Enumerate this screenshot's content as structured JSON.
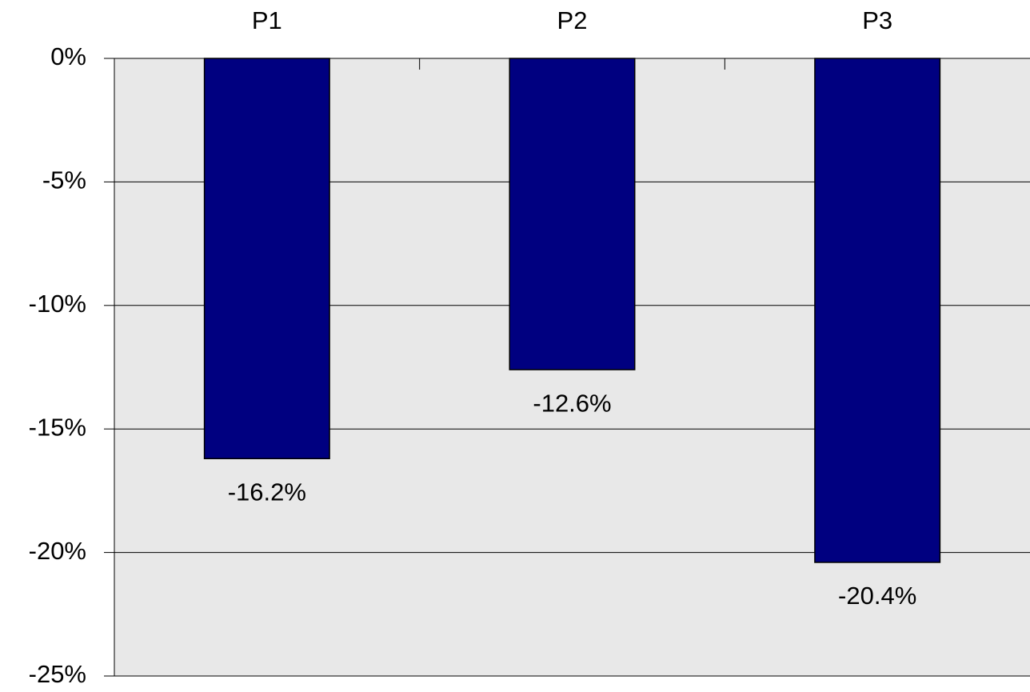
{
  "chart_data": {
    "type": "bar",
    "categories": [
      "P1",
      "P2",
      "P3"
    ],
    "values": [
      -16.2,
      -12.6,
      -20.4
    ],
    "value_labels": [
      "-16.2%",
      "-12.6%",
      "-20.4%"
    ],
    "color": "#000080",
    "ylim": [
      -25,
      0
    ],
    "yticks": [
      {
        "value": 0,
        "label": "0%"
      },
      {
        "value": -5,
        "label": "-5%"
      },
      {
        "value": -10,
        "label": "-10%"
      },
      {
        "value": -15,
        "label": "-15%"
      },
      {
        "value": -20,
        "label": "-20%"
      },
      {
        "value": -25,
        "label": "-25%"
      }
    ],
    "grid": true
  }
}
